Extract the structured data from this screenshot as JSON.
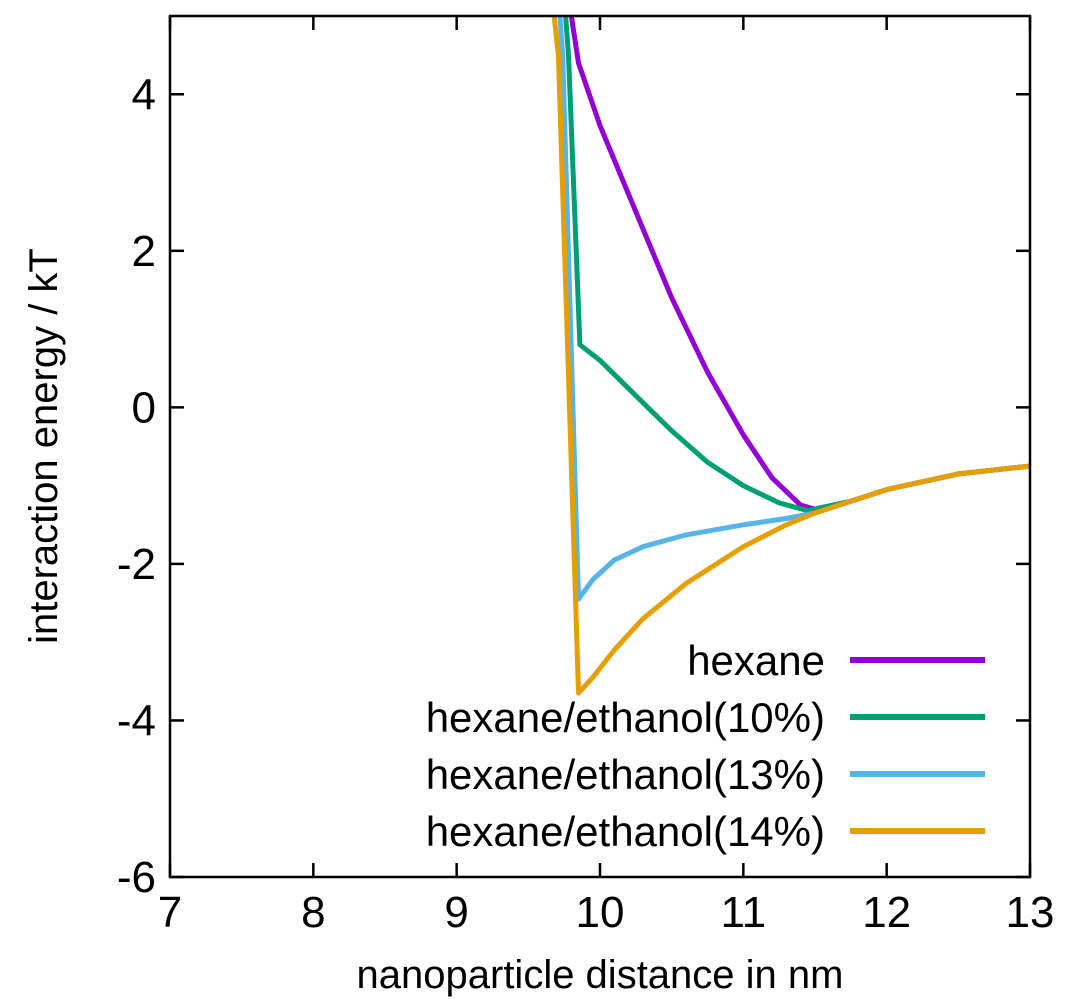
{
  "chart_data": {
    "type": "line",
    "xlabel": "nanoparticle distance in nm",
    "ylabel": "interaction energy / kT",
    "xlim": [
      7,
      13
    ],
    "ylim": [
      -6,
      5
    ],
    "xticks": [
      "7",
      "8",
      "9",
      "10",
      "11",
      "12",
      "13"
    ],
    "yticks": [
      "-6",
      "-4",
      "-2",
      "0",
      "2",
      "4"
    ],
    "grid": false,
    "legend_position": "bottom-right",
    "series": [
      {
        "name": "hexane",
        "color": "#9400d3",
        "points": [
          [
            9.8,
            5.0
          ],
          [
            9.85,
            4.4
          ],
          [
            10.0,
            3.6
          ],
          [
            10.25,
            2.5
          ],
          [
            10.5,
            1.4
          ],
          [
            10.75,
            0.45
          ],
          [
            11.0,
            -0.35
          ],
          [
            11.2,
            -0.9
          ],
          [
            11.4,
            -1.25
          ],
          [
            11.5,
            -1.3
          ],
          [
            11.75,
            -1.2
          ],
          [
            12.0,
            -1.05
          ],
          [
            12.5,
            -0.85
          ],
          [
            13.0,
            -0.75
          ]
        ]
      },
      {
        "name": "hexane/ethanol(10%)",
        "color": "#009e73",
        "points": [
          [
            9.76,
            5.0
          ],
          [
            9.78,
            4.5
          ],
          [
            9.86,
            0.8
          ],
          [
            10.0,
            0.6
          ],
          [
            10.25,
            0.15
          ],
          [
            10.5,
            -0.3
          ],
          [
            10.75,
            -0.7
          ],
          [
            11.0,
            -1.0
          ],
          [
            11.25,
            -1.22
          ],
          [
            11.45,
            -1.32
          ],
          [
            11.5,
            -1.3
          ],
          [
            11.75,
            -1.2
          ],
          [
            12.0,
            -1.05
          ],
          [
            12.5,
            -0.85
          ],
          [
            13.0,
            -0.75
          ]
        ]
      },
      {
        "name": "hexane/ethanol(13%)",
        "color": "#56b4e9",
        "points": [
          [
            9.72,
            5.0
          ],
          [
            9.74,
            4.5
          ],
          [
            9.85,
            -2.45
          ],
          [
            9.95,
            -2.2
          ],
          [
            10.1,
            -1.95
          ],
          [
            10.3,
            -1.78
          ],
          [
            10.6,
            -1.63
          ],
          [
            11.0,
            -1.5
          ],
          [
            11.3,
            -1.42
          ],
          [
            11.5,
            -1.35
          ],
          [
            11.75,
            -1.2
          ],
          [
            12.0,
            -1.05
          ],
          [
            12.5,
            -0.85
          ],
          [
            13.0,
            -0.75
          ]
        ]
      },
      {
        "name": "hexane/ethanol(14%)",
        "color": "#e69f00",
        "points": [
          [
            9.68,
            5.0
          ],
          [
            9.71,
            4.5
          ],
          [
            9.85,
            -3.65
          ],
          [
            9.95,
            -3.45
          ],
          [
            10.1,
            -3.1
          ],
          [
            10.3,
            -2.7
          ],
          [
            10.6,
            -2.25
          ],
          [
            11.0,
            -1.78
          ],
          [
            11.3,
            -1.5
          ],
          [
            11.5,
            -1.35
          ],
          [
            11.75,
            -1.2
          ],
          [
            12.0,
            -1.05
          ],
          [
            12.5,
            -0.85
          ],
          [
            13.0,
            -0.75
          ]
        ]
      }
    ]
  }
}
